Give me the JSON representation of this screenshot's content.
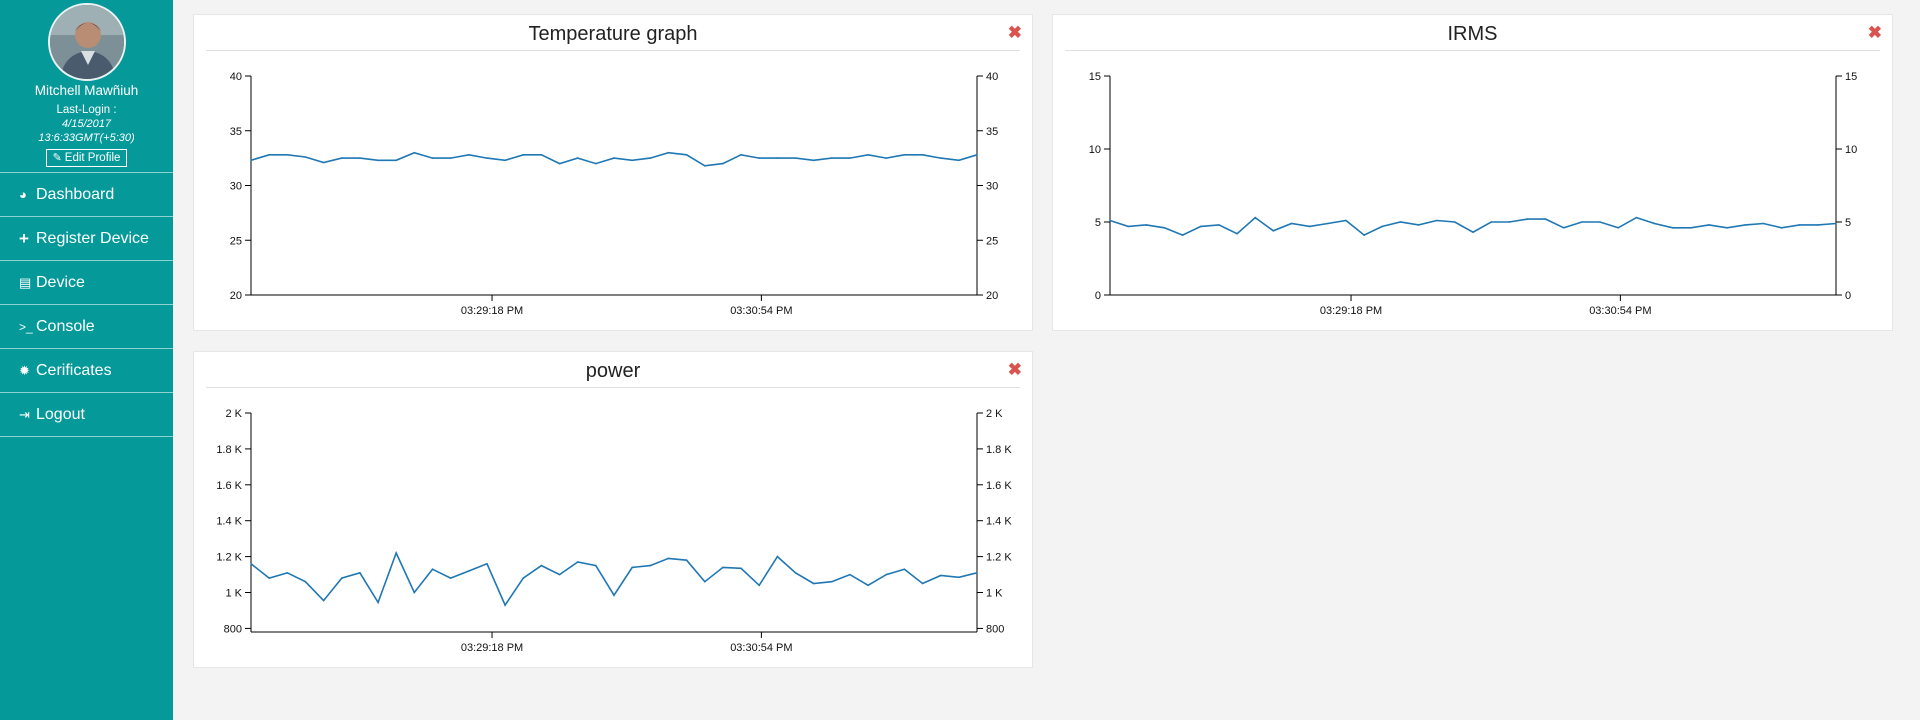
{
  "profile": {
    "name": "Mitchell Mawñiuh",
    "last_login_label": "Last-Login :",
    "last_login_date": "4/15/2017",
    "last_login_time": "13:6:33GMT(+5:30)",
    "edit_label": "Edit Profile"
  },
  "menu": [
    {
      "label": "Dashboard",
      "icon": "dashboard-icon"
    },
    {
      "label": "Register Device",
      "icon": "plus-icon"
    },
    {
      "label": "Device",
      "icon": "list-icon"
    },
    {
      "label": "Console",
      "icon": "terminal-icon"
    },
    {
      "label": "Cerificates",
      "icon": "certificate-icon"
    },
    {
      "label": "Logout",
      "icon": "sign-out-icon"
    }
  ],
  "colors": {
    "sidebar": "#06999a",
    "line": "#1f77b4",
    "close": "#d9534f",
    "background": "#f3f3f3"
  },
  "panels": [
    {
      "title": "Temperature graph"
    },
    {
      "title": "IRMS"
    },
    {
      "title": "power"
    }
  ],
  "chart_data": [
    {
      "type": "line",
      "title": "Temperature graph",
      "ylim": [
        20,
        40
      ],
      "yticks": [
        20,
        25,
        30,
        35,
        40
      ],
      "ytick_labels": [
        "20",
        "25",
        "30",
        "35",
        "40"
      ],
      "xtick_labels": [
        "03:29:18 PM",
        "03:30:54 PM"
      ],
      "y_axis_both_sides": true,
      "grid": false,
      "values": [
        32.3,
        32.8,
        32.8,
        32.6,
        32.1,
        32.5,
        32.5,
        32.3,
        32.3,
        33.0,
        32.5,
        32.5,
        32.8,
        32.5,
        32.3,
        32.8,
        32.8,
        32.0,
        32.5,
        32.0,
        32.5,
        32.3,
        32.5,
        33.0,
        32.8,
        31.8,
        32.0,
        32.8,
        32.5,
        32.5,
        32.5,
        32.3,
        32.5,
        32.5,
        32.8,
        32.5,
        32.8,
        32.8,
        32.5,
        32.3,
        32.8
      ]
    },
    {
      "type": "line",
      "title": "IRMS",
      "ylim": [
        0,
        15
      ],
      "yticks": [
        0,
        5,
        10,
        15
      ],
      "ytick_labels": [
        "0",
        "5",
        "10",
        "15"
      ],
      "xtick_labels": [
        "03:29:18 PM",
        "03:30:54 PM"
      ],
      "y_axis_both_sides": true,
      "grid": false,
      "values": [
        5.1,
        4.7,
        4.8,
        4.6,
        4.1,
        4.7,
        4.8,
        4.2,
        5.3,
        4.4,
        4.9,
        4.7,
        4.9,
        5.1,
        4.1,
        4.7,
        5.0,
        4.8,
        5.1,
        5.0,
        4.3,
        5.0,
        5.0,
        5.2,
        5.2,
        4.6,
        5.0,
        5.0,
        4.6,
        5.3,
        4.9,
        4.6,
        4.6,
        4.8,
        4.6,
        4.8,
        4.9,
        4.6,
        4.8,
        4.8,
        4.9
      ]
    },
    {
      "type": "line",
      "title": "power",
      "ylim": [
        780,
        2000
      ],
      "yticks": [
        800,
        1000,
        1200,
        1400,
        1600,
        1800,
        2000
      ],
      "ytick_labels": [
        "800",
        "1 K",
        "1.2 K",
        "1.4 K",
        "1.6 K",
        "1.8 K",
        "2 K"
      ],
      "xtick_labels": [
        "03:29:18 PM",
        "03:30:54 PM"
      ],
      "y_axis_both_sides": true,
      "grid": false,
      "values": [
        1160,
        1080,
        1110,
        1060,
        955,
        1080,
        1110,
        945,
        1220,
        1000,
        1130,
        1080,
        1120,
        1160,
        930,
        1080,
        1150,
        1100,
        1170,
        1150,
        985,
        1140,
        1150,
        1190,
        1180,
        1060,
        1140,
        1135,
        1040,
        1200,
        1110,
        1050,
        1060,
        1100,
        1040,
        1100,
        1130,
        1050,
        1095,
        1085,
        1110
      ]
    }
  ]
}
